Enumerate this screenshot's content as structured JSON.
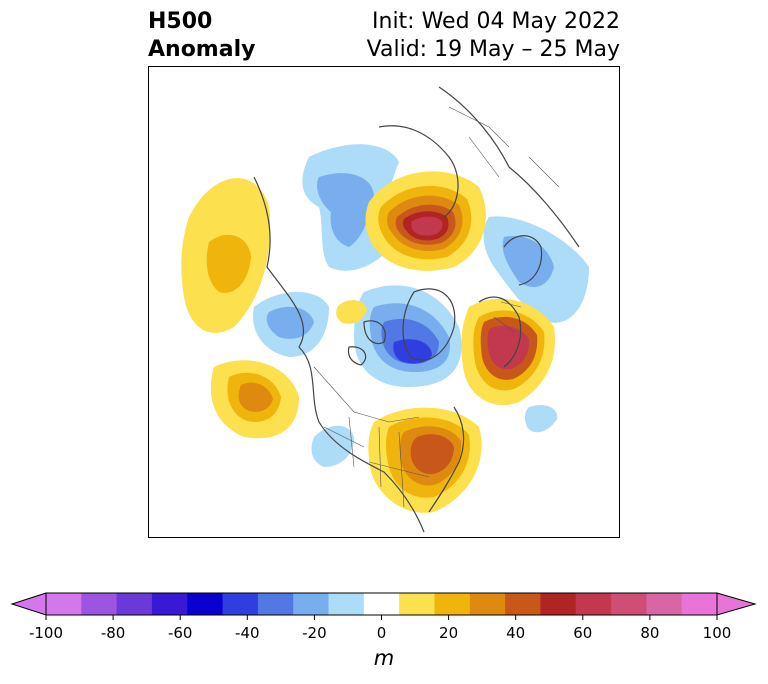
{
  "title": {
    "left_line1": "H500",
    "left_line2": "Anomaly",
    "right_line1": "Init: Wed 04 May 2022",
    "right_line2": "Valid: 19 May – 25 May"
  },
  "colorbar": {
    "unit": "m",
    "ticks": [
      "-100",
      "-80",
      "-60",
      "-40",
      "-20",
      "0",
      "20",
      "40",
      "60",
      "80",
      "100"
    ],
    "tick_values": [
      -100,
      -80,
      -60,
      -40,
      -20,
      0,
      20,
      40,
      60,
      80,
      100
    ],
    "levels": [
      -100,
      -90,
      -80,
      -70,
      -60,
      -50,
      -40,
      -30,
      -20,
      -10,
      10,
      20,
      30,
      40,
      50,
      60,
      70,
      80,
      90,
      100
    ],
    "colors": [
      "#d378eb",
      "#9c55e0",
      "#6a39d8",
      "#3a19d6",
      "#0a00d0",
      "#2f3ede",
      "#5278e4",
      "#78aeee",
      "#acdcf8",
      "#ffffff",
      "#fce04e",
      "#f0b50c",
      "#de8a10",
      "#c8581a",
      "#b02424",
      "#c2384e",
      "#cf4e76",
      "#d865a4",
      "#e874d8"
    ],
    "extend": "both"
  },
  "map": {
    "projection": "polar-stereographic",
    "region": "North Hemisphere",
    "anomaly_features": [
      {
        "sign": "positive",
        "max_level": 80,
        "location": "Siberia / Arctic Russia"
      },
      {
        "sign": "positive",
        "max_level": 70,
        "location": "North Atlantic / Greenland east"
      },
      {
        "sign": "positive",
        "max_level": 50,
        "location": "Eastern United States / Great Lakes"
      },
      {
        "sign": "positive",
        "max_level": 30,
        "location": "NE Pacific"
      },
      {
        "sign": "positive",
        "max_level": 30,
        "location": "Bering Sea / North Pacific"
      },
      {
        "sign": "positive",
        "max_level": 20,
        "location": "Central Arctic"
      },
      {
        "sign": "negative",
        "max_level": -60,
        "location": "Canadian Arctic Archipelago / Baffin"
      },
      {
        "sign": "negative",
        "max_level": -40,
        "location": "Alaska / Arctic Ocean"
      },
      {
        "sign": "negative",
        "max_level": -30,
        "location": "Northern Europe / Scandinavia"
      },
      {
        "sign": "negative",
        "max_level": -20,
        "location": "Central Atlantic"
      },
      {
        "sign": "negative",
        "max_level": -20,
        "location": "Northern Rockies"
      }
    ]
  }
}
